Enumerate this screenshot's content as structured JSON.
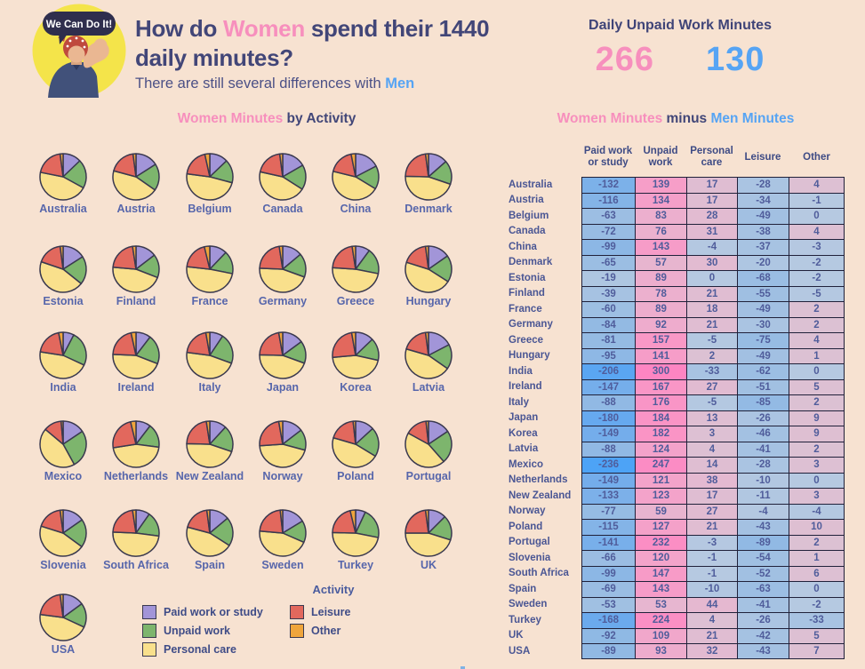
{
  "header": {
    "title_part1": "How do ",
    "title_women": "Women",
    "title_part2": " spend their 1440",
    "title_line2": "daily minutes?",
    "subtitle_part1": "There are still several differences with ",
    "subtitle_men": "Men"
  },
  "badge": {
    "bubble_text": "We Can Do It!"
  },
  "kpi": {
    "title": "Daily Unpaid Work Minutes",
    "women_value": "266",
    "men_value": "130"
  },
  "left_section": {
    "heading_women": "Women Minutes",
    "heading_rest": " by Activity"
  },
  "right_section": {
    "heading_women": "Women Minutes",
    "heading_minus": " minus ",
    "heading_men": "Men Minutes"
  },
  "legend": {
    "title": "Activity",
    "items": [
      {
        "label": "Paid work or study",
        "color": "#a295d8"
      },
      {
        "label": "Unpaid work",
        "color": "#7db56d"
      },
      {
        "label": "Personal care",
        "color": "#f9e08c"
      },
      {
        "label": "Leisure",
        "color": "#e2685d"
      },
      {
        "label": "Other",
        "color": "#efa53c"
      }
    ]
  },
  "colors": {
    "background": "#f7e2d1",
    "title_navy": "#424678",
    "women_pink": "#f78fbd",
    "men_blue": "#56a4f4",
    "pie_stroke": "#3a394f",
    "table_border": "#20213a"
  },
  "chart_data": [
    {
      "type": "pie",
      "title": "Women Minutes by Activity",
      "categories": [
        "Paid work or study",
        "Unpaid work",
        "Personal care",
        "Leisure",
        "Other"
      ],
      "colors": [
        "#a295d8",
        "#7db56d",
        "#f9e08c",
        "#e2685d",
        "#efa53c"
      ],
      "total_minutes": 1440,
      "countries": [
        {
          "name": "Australia",
          "values": [
            185,
            290,
            650,
            285,
            30
          ]
        },
        {
          "name": "Austria",
          "values": [
            230,
            270,
            640,
            270,
            30
          ]
        },
        {
          "name": "Belgium",
          "values": [
            185,
            235,
            690,
            280,
            50
          ]
        },
        {
          "name": "Canada",
          "values": [
            240,
            250,
            640,
            280,
            30
          ]
        },
        {
          "name": "China",
          "values": [
            250,
            235,
            650,
            260,
            45
          ]
        },
        {
          "name": "Denmark",
          "values": [
            195,
            240,
            650,
            325,
            30
          ]
        },
        {
          "name": "Estonia",
          "values": [
            230,
            285,
            640,
            255,
            30
          ]
        },
        {
          "name": "Finland",
          "values": [
            210,
            235,
            655,
            305,
            35
          ]
        },
        {
          "name": "France",
          "values": [
            175,
            230,
            700,
            280,
            55
          ]
        },
        {
          "name": "Germany",
          "values": [
            200,
            240,
            650,
            315,
            35
          ]
        },
        {
          "name": "Greece",
          "values": [
            145,
            260,
            690,
            310,
            35
          ]
        },
        {
          "name": "Hungary",
          "values": [
            220,
            270,
            660,
            260,
            30
          ]
        },
        {
          "name": "India",
          "values": [
            110,
            350,
            655,
            280,
            45
          ]
        },
        {
          "name": "Ireland",
          "values": [
            150,
            295,
            645,
            300,
            50
          ]
        },
        {
          "name": "Italy",
          "values": [
            135,
            305,
            670,
            290,
            40
          ]
        },
        {
          "name": "Japan",
          "values": [
            215,
            225,
            645,
            315,
            40
          ]
        },
        {
          "name": "Korea",
          "values": [
            185,
            225,
            650,
            340,
            40
          ]
        },
        {
          "name": "Latvia",
          "values": [
            250,
            250,
            645,
            265,
            30
          ]
        },
        {
          "name": "Mexico",
          "values": [
            225,
            380,
            635,
            180,
            20
          ]
        },
        {
          "name": "Netherlands",
          "values": [
            150,
            240,
            655,
            340,
            55
          ]
        },
        {
          "name": "New Zealand",
          "values": [
            170,
            265,
            650,
            320,
            35
          ]
        },
        {
          "name": "Norway",
          "values": [
            210,
            210,
            645,
            335,
            40
          ]
        },
        {
          "name": "Poland",
          "values": [
            190,
            295,
            660,
            270,
            25
          ]
        },
        {
          "name": "Portugal",
          "values": [
            225,
            330,
            640,
            220,
            25
          ]
        },
        {
          "name": "Slovenia",
          "values": [
            220,
            285,
            645,
            260,
            30
          ]
        },
        {
          "name": "South Africa",
          "values": [
            140,
            250,
            700,
            315,
            35
          ]
        },
        {
          "name": "Spain",
          "values": [
            200,
            290,
            650,
            270,
            30
          ]
        },
        {
          "name": "Sweden",
          "values": [
            235,
            220,
            645,
            315,
            25
          ]
        },
        {
          "name": "Turkey",
          "values": [
            100,
            305,
            680,
            300,
            55
          ]
        },
        {
          "name": "UK",
          "values": [
            180,
            250,
            650,
            330,
            30
          ]
        },
        {
          "name": "USA",
          "values": [
            215,
            245,
            650,
            300,
            30
          ]
        }
      ]
    },
    {
      "type": "table",
      "title": "Women Minutes minus Men Minutes",
      "columns": [
        [
          "Paid work",
          "or study"
        ],
        [
          "Unpaid",
          "work"
        ],
        [
          "Personal",
          "care"
        ],
        [
          "Leisure"
        ],
        [
          "Other"
        ]
      ],
      "rows": [
        {
          "country": "Australia",
          "values": [
            -132,
            139,
            17,
            -28,
            4
          ]
        },
        {
          "country": "Austria",
          "values": [
            -116,
            134,
            17,
            -34,
            -1
          ]
        },
        {
          "country": "Belgium",
          "values": [
            -63,
            83,
            28,
            -49,
            0
          ]
        },
        {
          "country": "Canada",
          "values": [
            -72,
            76,
            31,
            -38,
            4
          ]
        },
        {
          "country": "China",
          "values": [
            -99,
            143,
            -4,
            -37,
            -3
          ]
        },
        {
          "country": "Denmark",
          "values": [
            -65,
            57,
            30,
            -20,
            -2
          ]
        },
        {
          "country": "Estonia",
          "values": [
            -19,
            89,
            0,
            -68,
            -2
          ]
        },
        {
          "country": "Finland",
          "values": [
            -39,
            78,
            21,
            -55,
            -5
          ]
        },
        {
          "country": "France",
          "values": [
            -60,
            89,
            18,
            -49,
            2
          ]
        },
        {
          "country": "Germany",
          "values": [
            -84,
            92,
            21,
            -30,
            2
          ]
        },
        {
          "country": "Greece",
          "values": [
            -81,
            157,
            -5,
            -75,
            4
          ]
        },
        {
          "country": "Hungary",
          "values": [
            -95,
            141,
            2,
            -49,
            1
          ]
        },
        {
          "country": "India",
          "values": [
            -206,
            300,
            -33,
            -62,
            0
          ]
        },
        {
          "country": "Ireland",
          "values": [
            -147,
            167,
            27,
            -51,
            5
          ]
        },
        {
          "country": "Italy",
          "values": [
            -88,
            176,
            -5,
            -85,
            2
          ]
        },
        {
          "country": "Japan",
          "values": [
            -180,
            184,
            13,
            -26,
            9
          ]
        },
        {
          "country": "Korea",
          "values": [
            -149,
            182,
            3,
            -46,
            9
          ]
        },
        {
          "country": "Latvia",
          "values": [
            -88,
            124,
            4,
            -41,
            2
          ]
        },
        {
          "country": "Mexico",
          "values": [
            -236,
            247,
            14,
            -28,
            3
          ]
        },
        {
          "country": "Netherlands",
          "values": [
            -149,
            121,
            38,
            -10,
            0
          ]
        },
        {
          "country": "New Zealand",
          "values": [
            -133,
            123,
            17,
            -11,
            3
          ]
        },
        {
          "country": "Norway",
          "values": [
            -77,
            59,
            27,
            -4,
            -4
          ]
        },
        {
          "country": "Poland",
          "values": [
            -115,
            127,
            21,
            -43,
            10
          ]
        },
        {
          "country": "Portugal",
          "values": [
            -141,
            232,
            -3,
            -89,
            2
          ]
        },
        {
          "country": "Slovenia",
          "values": [
            -66,
            120,
            -1,
            -54,
            1
          ]
        },
        {
          "country": "South Africa",
          "values": [
            -99,
            147,
            -1,
            -52,
            6
          ]
        },
        {
          "country": "Spain",
          "values": [
            -69,
            143,
            -10,
            -63,
            0
          ]
        },
        {
          "country": "Sweden",
          "values": [
            -53,
            53,
            44,
            -41,
            -2
          ]
        },
        {
          "country": "Turkey",
          "values": [
            -168,
            224,
            4,
            -26,
            -33
          ]
        },
        {
          "country": "UK",
          "values": [
            -92,
            109,
            21,
            -42,
            5
          ]
        },
        {
          "country": "USA",
          "values": [
            -89,
            93,
            32,
            -43,
            7
          ]
        }
      ],
      "color_scale": {
        "negative_stops": [
          [
            0,
            "#b6c9e1"
          ],
          [
            80,
            "#95bbe3"
          ],
          [
            160,
            "#6fabec"
          ],
          [
            240,
            "#4ba3f6"
          ]
        ],
        "positive_stops": [
          [
            0,
            "#dcc1d3"
          ],
          [
            80,
            "#ecb0ce"
          ],
          [
            160,
            "#f997c6"
          ],
          [
            300,
            "#fd85c2"
          ]
        ]
      }
    }
  ]
}
